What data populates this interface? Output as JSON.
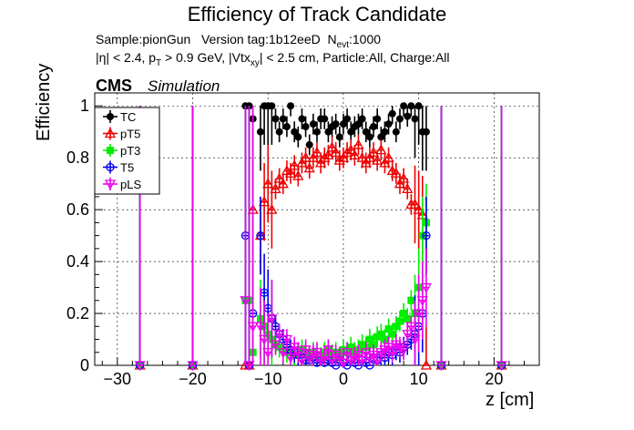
{
  "chart_data": {
    "type": "scatter",
    "title": "Efficiency of Track Candidate",
    "subtitle_parts": {
      "sample": "Sample:pionGun",
      "version": "Version tag:1b12eeD",
      "nevt_base": "N",
      "nevt_sub": "evt",
      "nevt_val": ":1000",
      "cuts_a": "|η| < 2.4, p",
      "cuts_a_sub": "T",
      "cuts_b": " > 0.9 GeV, |Vtx",
      "cuts_b_sub": "xy",
      "cuts_c": "| < 2.5 cm, Particle:All, Charge:All"
    },
    "cms_label": "CMS",
    "simulation_label": "Simulation",
    "xlabel": "z [cm]",
    "ylabel": "Efficiency",
    "xlim": [
      -33,
      26
    ],
    "ylim": [
      0,
      1.05
    ],
    "xticks": [
      -30,
      -20,
      -10,
      0,
      10,
      20
    ],
    "yticks": [
      0,
      0.2,
      0.4,
      0.6,
      0.8,
      1
    ],
    "grid": true,
    "legend_position": "top-left",
    "series": [
      {
        "name": "TC",
        "color": "#000000",
        "marker": "filled-circle",
        "x": [
          -27,
          -20,
          -13,
          -12.5,
          -12,
          -11,
          -10.5,
          -10,
          -9.5,
          -9,
          -8.5,
          -8,
          -7.5,
          -7,
          -6.5,
          -6,
          -5.5,
          -5,
          -4.5,
          -4,
          -3.5,
          -3,
          -2.5,
          -2,
          -1.5,
          -1,
          -0.5,
          0,
          0.5,
          1,
          1.5,
          2,
          2.5,
          3,
          3.5,
          4,
          4.5,
          5,
          5.5,
          6,
          6.5,
          7,
          7.5,
          8,
          8.5,
          9,
          9.5,
          10,
          10.5,
          11,
          13,
          21
        ],
        "y": [
          0,
          0,
          1,
          1,
          0.95,
          0.9,
          1,
          1,
          1,
          0.95,
          0.9,
          0.95,
          0.92,
          1,
          0.9,
          0.88,
          0.95,
          0.92,
          0.85,
          0.93,
          0.9,
          0.95,
          0.95,
          0.9,
          0.92,
          0.93,
          0.88,
          0.93,
          0.95,
          0.9,
          0.92,
          0.93,
          0.95,
          0.9,
          0.88,
          0.92,
          0.95,
          0.88,
          0.9,
          0.93,
          0.97,
          0.9,
          0.95,
          1,
          0.96,
          1,
          0.95,
          1,
          0.9,
          0.9,
          0,
          0
        ]
      },
      {
        "name": "pT5",
        "color": "#ee0000",
        "marker": "open-triangle",
        "x": [
          -27,
          -20,
          -13,
          -12.5,
          -12,
          -11,
          -10.5,
          -10,
          -9.5,
          -9,
          -8.5,
          -8,
          -7.5,
          -7,
          -6.5,
          -6,
          -5.5,
          -5,
          -4.5,
          -4,
          -3.5,
          -3,
          -2.5,
          -2,
          -1.5,
          -1,
          -0.5,
          0,
          0.5,
          1,
          1.5,
          2,
          2.5,
          3,
          3.5,
          4,
          4.5,
          5,
          5.5,
          6,
          6.5,
          7,
          7.5,
          8,
          8.5,
          9,
          9.5,
          10,
          10.5,
          11,
          13,
          21
        ],
        "y": [
          0,
          0,
          0,
          0,
          0.6,
          0.5,
          0.63,
          0.7,
          0.6,
          0.68,
          0.72,
          0.7,
          0.75,
          0.74,
          0.77,
          0.73,
          0.78,
          0.8,
          0.76,
          0.8,
          0.82,
          0.78,
          0.8,
          0.81,
          0.84,
          0.82,
          0.79,
          0.8,
          0.82,
          0.83,
          0.81,
          0.85,
          0.8,
          0.78,
          0.8,
          0.82,
          0.79,
          0.83,
          0.78,
          0.8,
          0.75,
          0.74,
          0.7,
          0.72,
          0.68,
          0.62,
          0.62,
          0.6,
          0.58,
          0,
          0,
          0
        ]
      },
      {
        "name": "pT3",
        "color": "#00ee00",
        "marker": "filled-square",
        "x": [
          -27,
          -20,
          -13,
          -12.5,
          -12,
          -11,
          -10.5,
          -10,
          -9.5,
          -9,
          -8.5,
          -8,
          -7.5,
          -7,
          -6.5,
          -6,
          -5.5,
          -5,
          -4.5,
          -4,
          -3.5,
          -3,
          -2.5,
          -2,
          -1.5,
          -1,
          -0.5,
          0,
          0.5,
          1,
          1.5,
          2,
          2.5,
          3,
          3.5,
          4,
          4.5,
          5,
          5.5,
          6,
          6.5,
          7,
          7.5,
          8,
          8.5,
          9,
          9.5,
          10,
          10.5,
          11,
          13,
          21
        ],
        "y": [
          0,
          0,
          0.25,
          0.25,
          0.05,
          0.18,
          0.15,
          0.12,
          0.1,
          0.08,
          0.07,
          0.06,
          0.05,
          0.05,
          0.04,
          0.04,
          0.06,
          0.05,
          0.03,
          0.05,
          0.04,
          0.03,
          0.05,
          0.06,
          0.04,
          0.05,
          0.03,
          0.06,
          0.05,
          0.07,
          0.05,
          0.06,
          0.08,
          0.07,
          0.1,
          0.08,
          0.11,
          0.12,
          0.1,
          0.14,
          0.12,
          0.15,
          0.17,
          0.2,
          0.18,
          0.25,
          0.2,
          0.3,
          0.5,
          0.55,
          0,
          0
        ]
      },
      {
        "name": "T5",
        "color": "#0000ee",
        "marker": "open-circle",
        "x": [
          -27,
          -20,
          -13,
          -12.5,
          -12,
          -11,
          -10.5,
          -10,
          -9.5,
          -9,
          -8.5,
          -8,
          -7.5,
          -7,
          -6.5,
          -6,
          -5.5,
          -5,
          -4.5,
          -4,
          -3.5,
          -3,
          -2.5,
          -2,
          -1.5,
          -1,
          -0.5,
          0,
          0.5,
          1,
          1.5,
          2,
          2.5,
          3,
          3.5,
          4,
          4.5,
          5,
          5.5,
          6,
          6.5,
          7,
          7.5,
          8,
          8.5,
          9,
          9.5,
          10,
          10.5,
          11,
          13,
          21
        ],
        "y": [
          0,
          0,
          0.5,
          0,
          0.2,
          0.5,
          0.28,
          0.22,
          0.18,
          0.15,
          0.12,
          0.1,
          0.08,
          0.06,
          0.05,
          0.04,
          0.03,
          0.02,
          0.02,
          0.03,
          0.01,
          0.02,
          0.01,
          0.02,
          0.01,
          0.0,
          0.02,
          0.01,
          0.0,
          0.02,
          0.01,
          0.0,
          0.02,
          0.01,
          0.0,
          0.03,
          0.02,
          0.04,
          0.03,
          0.05,
          0.04,
          0.06,
          0.05,
          0.07,
          0.08,
          0.1,
          0.12,
          0.15,
          0.2,
          0.5,
          0,
          0
        ]
      },
      {
        "name": "pLS",
        "color": "#ee00ee",
        "marker": "open-triangle-down",
        "x": [
          -27,
          -20,
          -13,
          -12.5,
          -12,
          -11,
          -10.5,
          -10,
          -9.5,
          -9,
          -8.5,
          -8,
          -7.5,
          -7,
          -6.5,
          -6,
          -5.5,
          -5,
          -4.5,
          -4,
          -3.5,
          -3,
          -2.5,
          -2,
          -1.5,
          -1,
          -0.5,
          0,
          0.5,
          1,
          1.5,
          2,
          2.5,
          3,
          3.5,
          4,
          4.5,
          5,
          5.5,
          6,
          6.5,
          7,
          7.5,
          8,
          8.5,
          9,
          9.5,
          10,
          10.5,
          11,
          13,
          21
        ],
        "y": [
          0,
          0,
          0.25,
          0,
          0.15,
          0.15,
          0.1,
          0.05,
          0.18,
          0.08,
          0.12,
          0.05,
          0.1,
          0.03,
          0.07,
          0.05,
          0.02,
          0.06,
          0.03,
          0.04,
          0.05,
          0.02,
          0.03,
          0.06,
          0.02,
          0.04,
          0.03,
          0.01,
          0.05,
          0.02,
          0.03,
          0.04,
          0.02,
          0.05,
          0.03,
          0.04,
          0.02,
          0.05,
          0.06,
          0.07,
          0.05,
          0.08,
          0.07,
          0.06,
          0.12,
          0.15,
          0.1,
          0.2,
          0.25,
          0.3,
          0,
          0
        ]
      }
    ]
  }
}
